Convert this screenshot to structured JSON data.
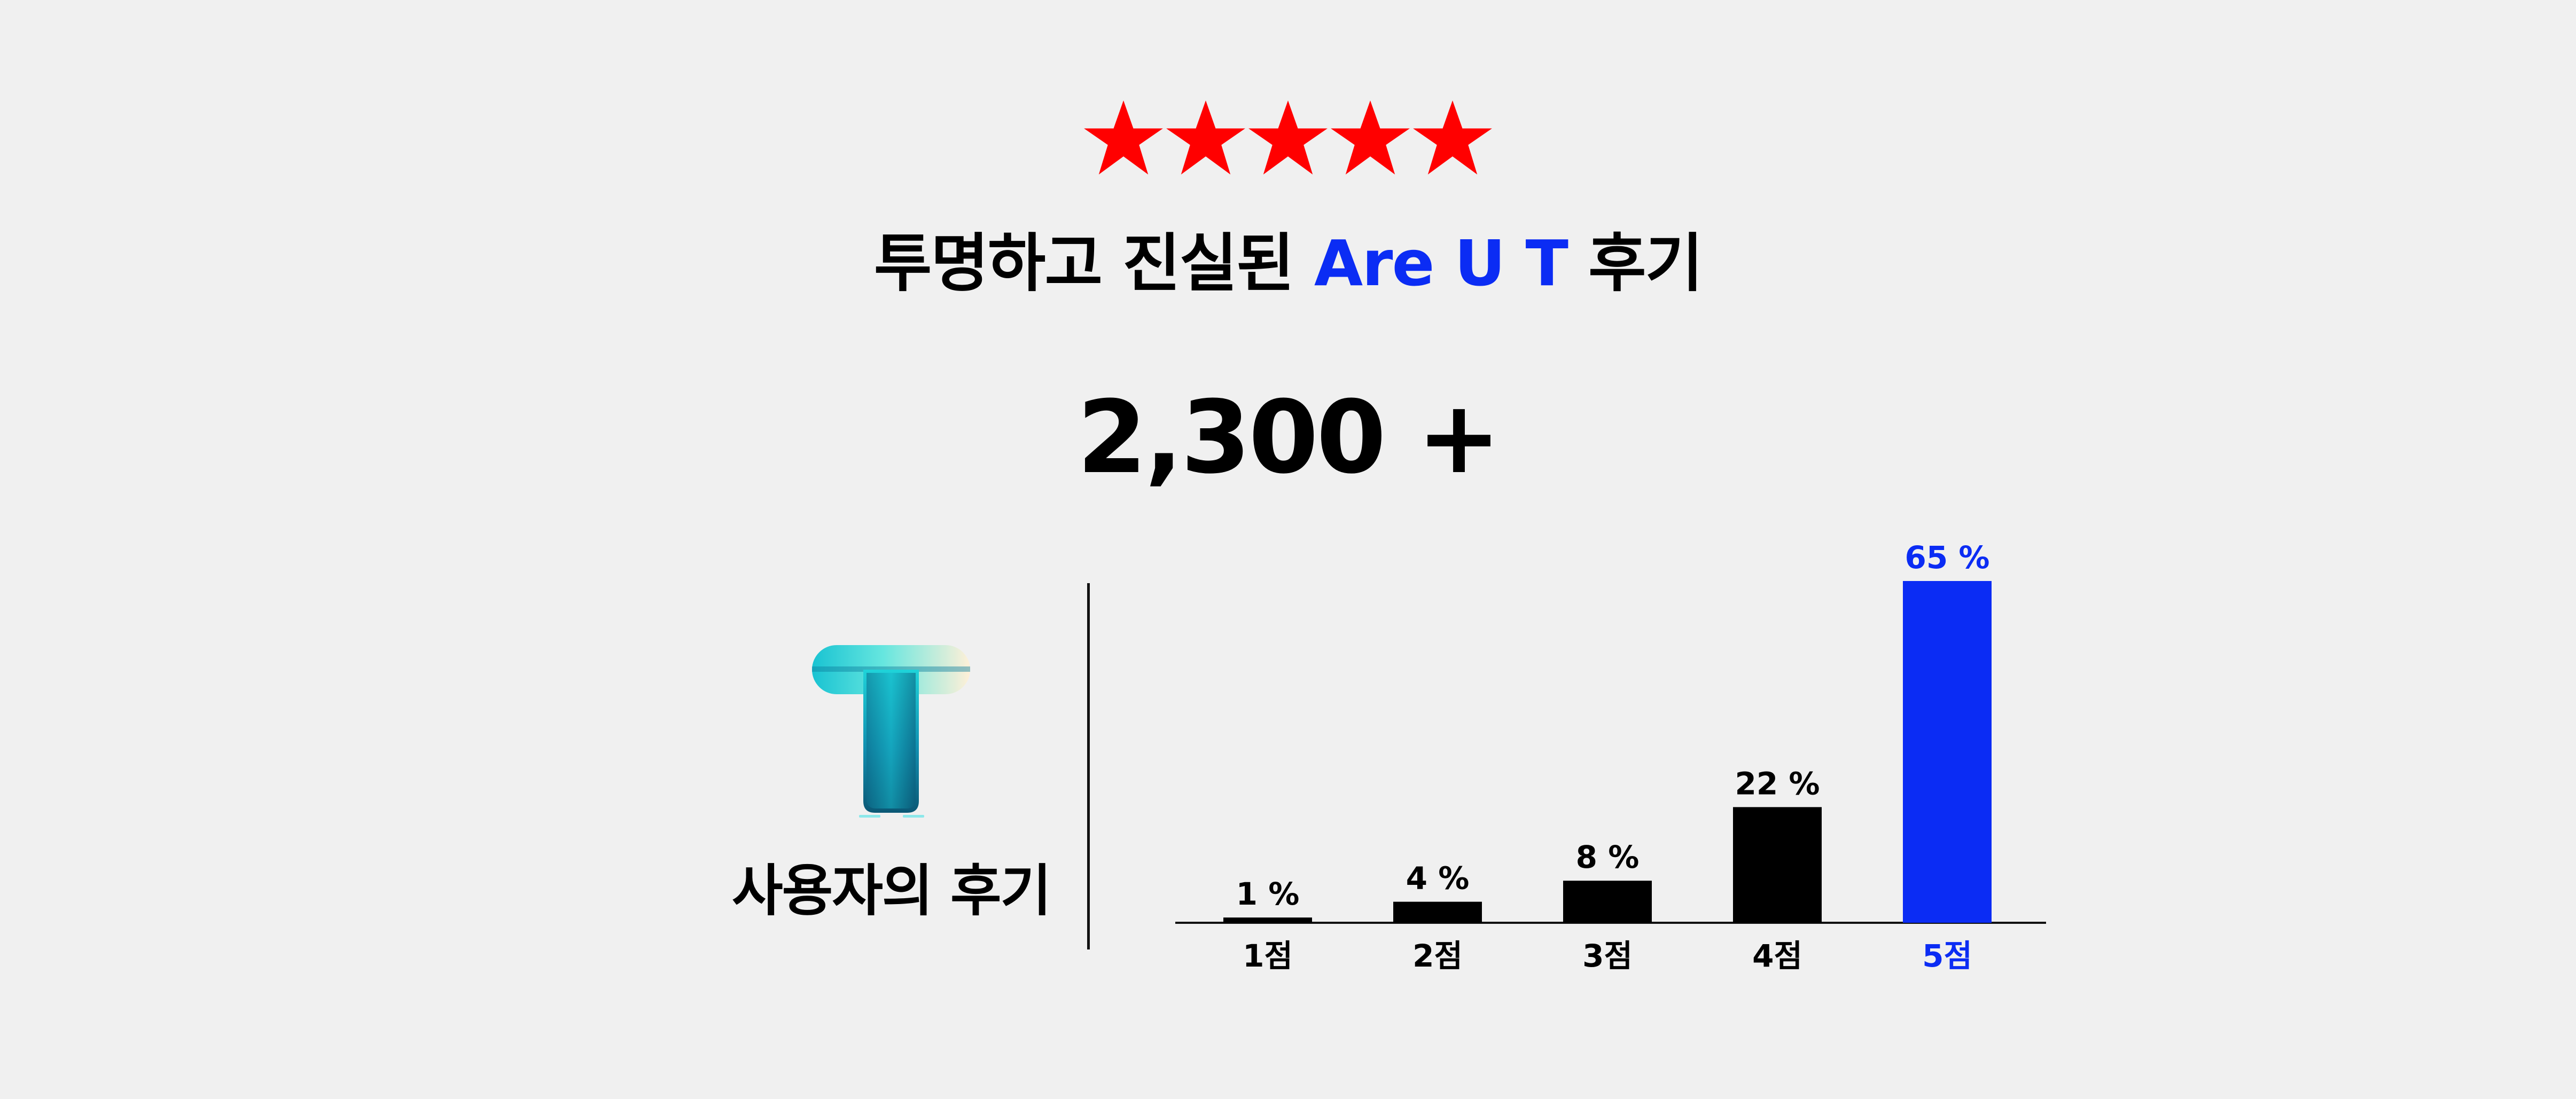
{
  "stars": {
    "rating": 5,
    "max": 5,
    "color": "#ff0000"
  },
  "header": {
    "title_prefix": "투명하고 진실된",
    "title_brand": "Are U T",
    "title_suffix": "후기",
    "brand_color": "#0b2cf4"
  },
  "summary": {
    "count": "2,300 +"
  },
  "left_panel": {
    "label": "사용자의 후기"
  },
  "chart_data": {
    "type": "bar",
    "categories": [
      "1점",
      "2점",
      "3점",
      "4점",
      "5점"
    ],
    "values": [
      1,
      4,
      8,
      22,
      65
    ],
    "value_labels": [
      "1 %",
      "4 %",
      "8 %",
      "22 %",
      "65 %"
    ],
    "highlight_index": 4,
    "colors": {
      "default": "#000000",
      "highlight": "#0b2cf4"
    },
    "ylim": [
      0,
      65
    ],
    "grid": false
  }
}
